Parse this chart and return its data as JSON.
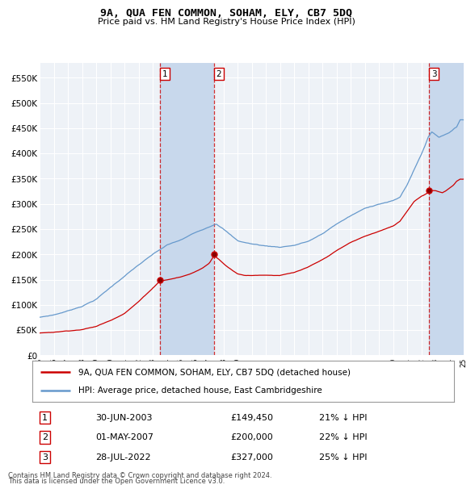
{
  "title": "9A, QUA FEN COMMON, SOHAM, ELY, CB7 5DQ",
  "subtitle": "Price paid vs. HM Land Registry's House Price Index (HPI)",
  "ylim": [
    0,
    580000
  ],
  "yticks": [
    0,
    50000,
    100000,
    150000,
    200000,
    250000,
    300000,
    350000,
    400000,
    450000,
    500000,
    550000
  ],
  "xlim_start": 1995.25,
  "xlim_end": 2025.0,
  "sale_dates": [
    2003.5,
    2007.33,
    2022.57
  ],
  "sale_prices": [
    149450,
    200000,
    327000
  ],
  "sale_labels": [
    "1",
    "2",
    "3"
  ],
  "sale_date_strs": [
    "30-JUN-2003",
    "01-MAY-2007",
    "28-JUL-2022"
  ],
  "sale_price_strs": [
    "£149,450",
    "£200,000",
    "£327,000"
  ],
  "sale_pct_strs": [
    "21% ↓ HPI",
    "22% ↓ HPI",
    "25% ↓ HPI"
  ],
  "legend_line1": "9A, QUA FEN COMMON, SOHAM, ELY, CB7 5DQ (detached house)",
  "legend_line2": "HPI: Average price, detached house, East Cambridgeshire",
  "footnote1": "Contains HM Land Registry data © Crown copyright and database right 2024.",
  "footnote2": "This data is licensed under the Open Government Licence v3.0.",
  "red_color": "#cc0000",
  "blue_color": "#6699cc",
  "bg_chart": "#eef2f7",
  "bg_figure": "#ffffff",
  "grid_color": "#ffffff",
  "shaded_color": "#c8d8ec",
  "hpi_anchors_x": [
    1995,
    1996,
    1997,
    1998,
    1999,
    2000,
    2001,
    2002,
    2003,
    2004,
    2005,
    2006,
    2007,
    2007.5,
    2008,
    2008.5,
    2009,
    2009.5,
    2010,
    2011,
    2012,
    2013,
    2014,
    2015,
    2016,
    2017,
    2018,
    2019,
    2020,
    2020.5,
    2021,
    2021.5,
    2022,
    2022.3,
    2022.5,
    2022.75,
    2023,
    2023.25,
    2023.5,
    2023.75,
    2024,
    2024.25,
    2024.5,
    2024.75
  ],
  "hpi_anchors_y": [
    75000,
    80000,
    88000,
    98000,
    112000,
    135000,
    158000,
    180000,
    200000,
    218000,
    228000,
    242000,
    255000,
    262000,
    252000,
    240000,
    228000,
    225000,
    222000,
    218000,
    216000,
    220000,
    228000,
    242000,
    262000,
    278000,
    292000,
    302000,
    308000,
    315000,
    340000,
    370000,
    400000,
    420000,
    435000,
    445000,
    440000,
    435000,
    438000,
    442000,
    445000,
    450000,
    455000,
    470000
  ],
  "pp_anchors_x": [
    1995,
    1996,
    1997,
    1998,
    1999,
    2000,
    2001,
    2002,
    2003,
    2003.5,
    2004,
    2004.5,
    2005,
    2005.5,
    2006,
    2006.5,
    2007,
    2007.33,
    2007.75,
    2008,
    2008.5,
    2009,
    2009.5,
    2010,
    2010.5,
    2011,
    2012,
    2013,
    2014,
    2015,
    2016,
    2017,
    2018,
    2019,
    2020,
    2020.5,
    2021,
    2021.5,
    2022,
    2022.57,
    2022.75,
    2023,
    2023.25,
    2023.5,
    2023.75,
    2024,
    2024.25,
    2024.5,
    2024.75
  ],
  "pp_anchors_y": [
    44000,
    46000,
    49000,
    52000,
    58000,
    70000,
    85000,
    108000,
    135000,
    149450,
    152000,
    155000,
    158000,
    162000,
    168000,
    175000,
    185000,
    200000,
    192000,
    185000,
    175000,
    165000,
    162000,
    162000,
    163000,
    163000,
    163000,
    168000,
    178000,
    192000,
    210000,
    226000,
    238000,
    248000,
    258000,
    268000,
    288000,
    308000,
    318000,
    327000,
    330000,
    330000,
    328000,
    326000,
    330000,
    335000,
    340000,
    348000,
    352000
  ]
}
